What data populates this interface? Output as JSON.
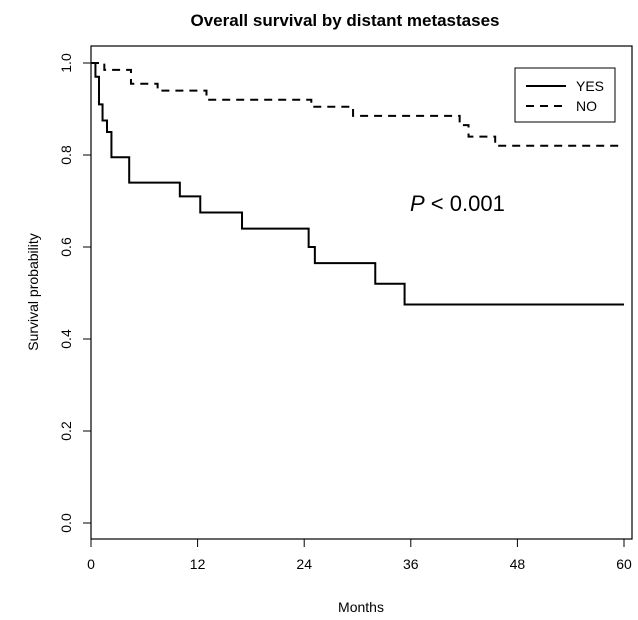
{
  "chart_data": {
    "type": "line",
    "title": "Overall survival by distant metastases",
    "xlabel": "Months",
    "ylabel": "Survival probability",
    "xlim": [
      0,
      60
    ],
    "ylim": [
      0,
      1
    ],
    "xticks": [
      "0",
      "12",
      "24",
      "36",
      "48",
      "60"
    ],
    "yticks": [
      "0.0",
      "0.2",
      "0.4",
      "0.6",
      "0.8",
      "1.0"
    ],
    "xtick_values": [
      0,
      12,
      24,
      36,
      48,
      60
    ],
    "ytick_values": [
      0,
      0.2,
      0.4,
      0.6,
      0.8,
      1.0
    ],
    "step": true,
    "grid": false,
    "legend_position": "top-right",
    "series": [
      {
        "name": "YES",
        "line_style": "solid",
        "x": [
          0,
          0.5,
          0.9,
          1.3,
          1.8,
          2.3,
          4.3,
          10.0,
          12.3,
          17.0,
          24.5,
          25.2,
          32.0,
          35.3,
          60.0
        ],
        "y": [
          1.0,
          0.97,
          0.91,
          0.875,
          0.85,
          0.795,
          0.74,
          0.71,
          0.675,
          0.64,
          0.6,
          0.565,
          0.52,
          0.475,
          0.475
        ]
      },
      {
        "name": "NO",
        "line_style": "dashed",
        "x": [
          0,
          1.5,
          4.5,
          7.5,
          13.0,
          24.8,
          29.5,
          41.5,
          42.5,
          45.5,
          60.0
        ],
        "y": [
          1.0,
          0.985,
          0.955,
          0.94,
          0.92,
          0.905,
          0.885,
          0.865,
          0.84,
          0.82,
          0.82
        ]
      }
    ],
    "annotations": [
      {
        "text_italic": "P",
        "text": " < 0.001"
      }
    ]
  }
}
